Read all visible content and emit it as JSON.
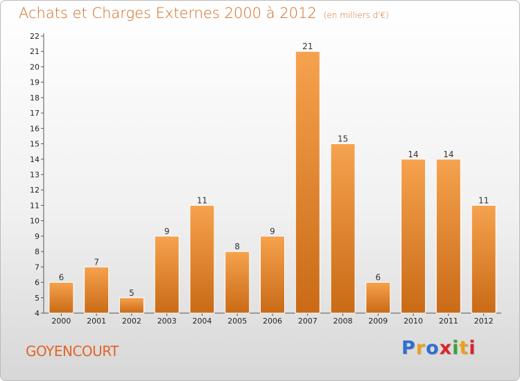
{
  "title": "Achats et Charges Externes 2000 à 2012",
  "unit": "(en milliers d'€)",
  "commune": "GOYENCOURT",
  "logo": {
    "letters": [
      "P",
      "r",
      "o",
      "x",
      "i",
      "t",
      "i"
    ],
    "colors": [
      "#2f6fd1",
      "#e8a21c",
      "#2f6fd1",
      "#d9262a",
      "#3aa33a",
      "#e8a21c",
      "#d9262a"
    ]
  },
  "chart_data": {
    "type": "bar",
    "title": "Achats et Charges Externes 2000 à 2012",
    "categories": [
      "2000",
      "2001",
      "2002",
      "2003",
      "2004",
      "2005",
      "2006",
      "2007",
      "2008",
      "2009",
      "2010",
      "2011",
      "2012"
    ],
    "values": [
      6,
      7,
      5,
      9,
      11,
      8,
      9,
      21,
      15,
      6,
      14,
      14,
      11
    ],
    "data_labels": [
      "6",
      "7",
      "5",
      "9",
      "11",
      "8",
      "9",
      "21",
      "15",
      "6",
      "14",
      "14",
      "11"
    ],
    "xlabel": "",
    "ylabel": "",
    "ylim": [
      4,
      22
    ],
    "yticks": [
      "4",
      "5",
      "6",
      "7",
      "8",
      "9",
      "10",
      "11",
      "12",
      "13",
      "14",
      "15",
      "16",
      "17",
      "18",
      "19",
      "20",
      "21",
      "22"
    ],
    "grid": false,
    "bar_color_top": "#f6a24e",
    "bar_color_bottom": "#c96a16"
  }
}
